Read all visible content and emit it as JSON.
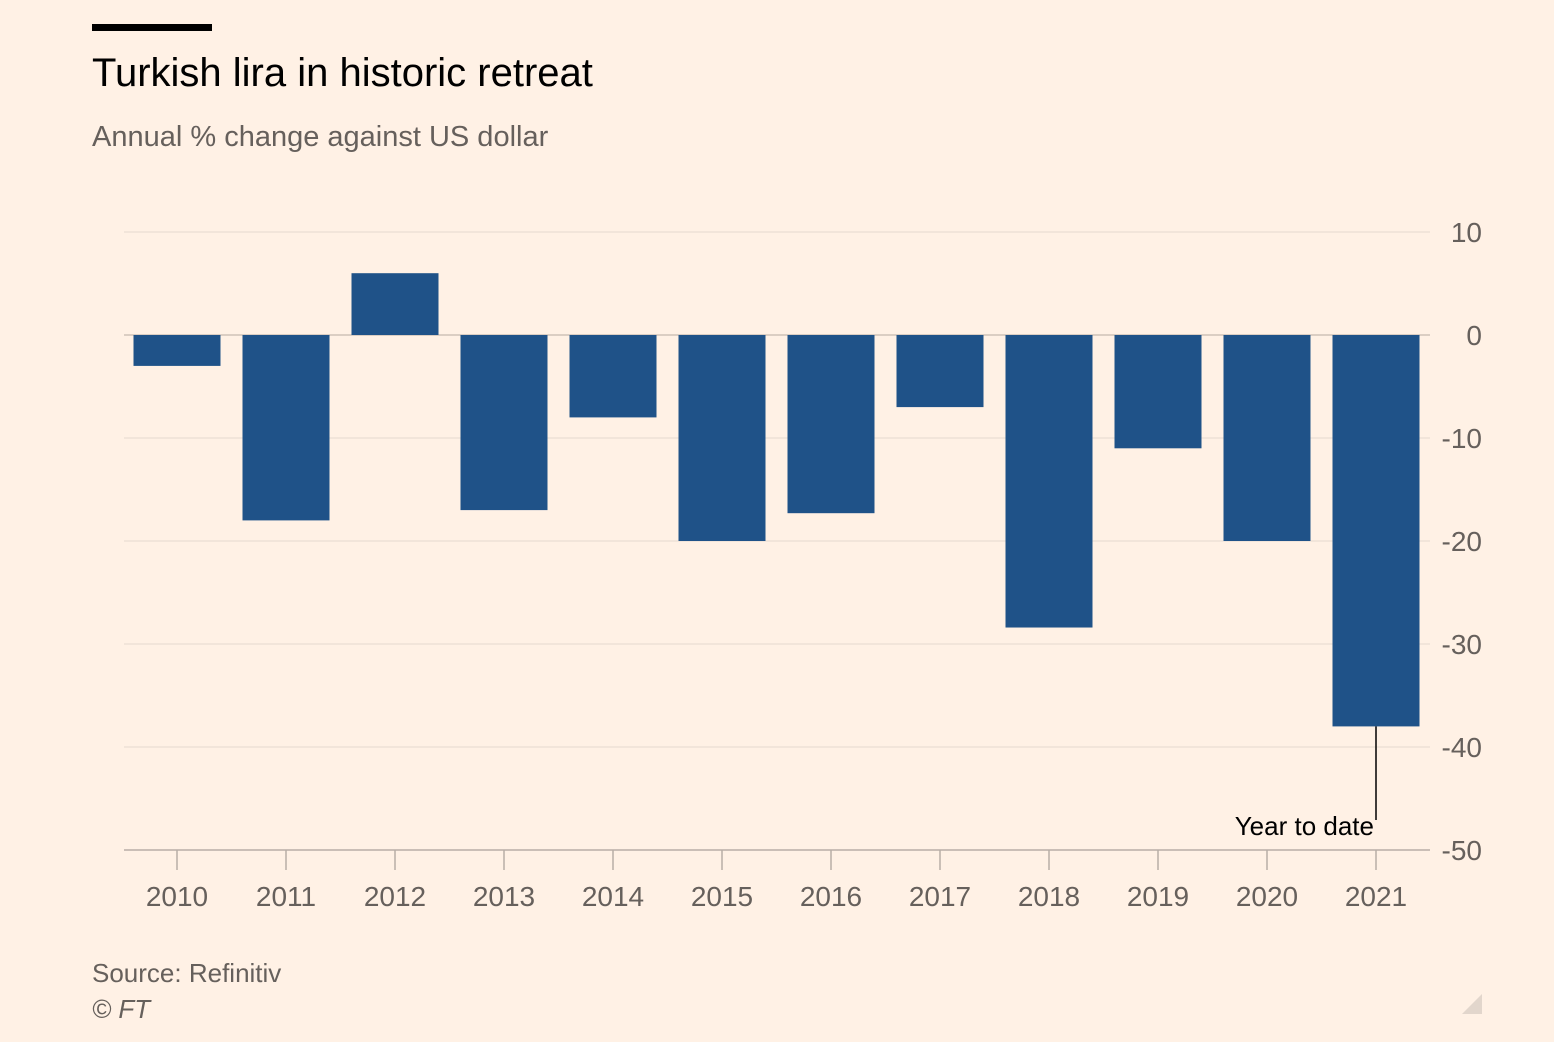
{
  "header": {
    "title": "Turkish lira in historic retreat",
    "subtitle": "Annual % change against US dollar"
  },
  "footer": {
    "source": "Source: Refinitiv",
    "credit": "© FT"
  },
  "colors": {
    "background": "#FFF1E5",
    "bar": "#1F5288",
    "grid": "#E6D9CE",
    "axis": "#B8AEA6",
    "tick_label": "#66605C",
    "title": "#000000"
  },
  "chart_data": {
    "type": "bar",
    "title": "Turkish lira in historic retreat",
    "subtitle": "Annual % change against US dollar",
    "xlabel": "",
    "ylabel": "",
    "categories": [
      "2010",
      "2011",
      "2012",
      "2013",
      "2014",
      "2015",
      "2016",
      "2017",
      "2018",
      "2019",
      "2020",
      "2021"
    ],
    "series": [
      {
        "name": "Annual % change against US dollar",
        "values": [
          -3,
          -18,
          6,
          -17,
          -8,
          -20,
          -17.3,
          -7,
          -28.4,
          -11,
          -20,
          -38
        ]
      }
    ],
    "ylim": [
      -50,
      10
    ],
    "yticks": [
      10,
      0,
      -10,
      -20,
      -30,
      -40,
      -50
    ],
    "ytick_labels": [
      "10",
      "0",
      "-10",
      "-20",
      "-30",
      "-40",
      "-50"
    ],
    "y_axis_side": "right",
    "grid": true,
    "annotations": [
      {
        "category": "2021",
        "text": "Year to date"
      }
    ]
  }
}
